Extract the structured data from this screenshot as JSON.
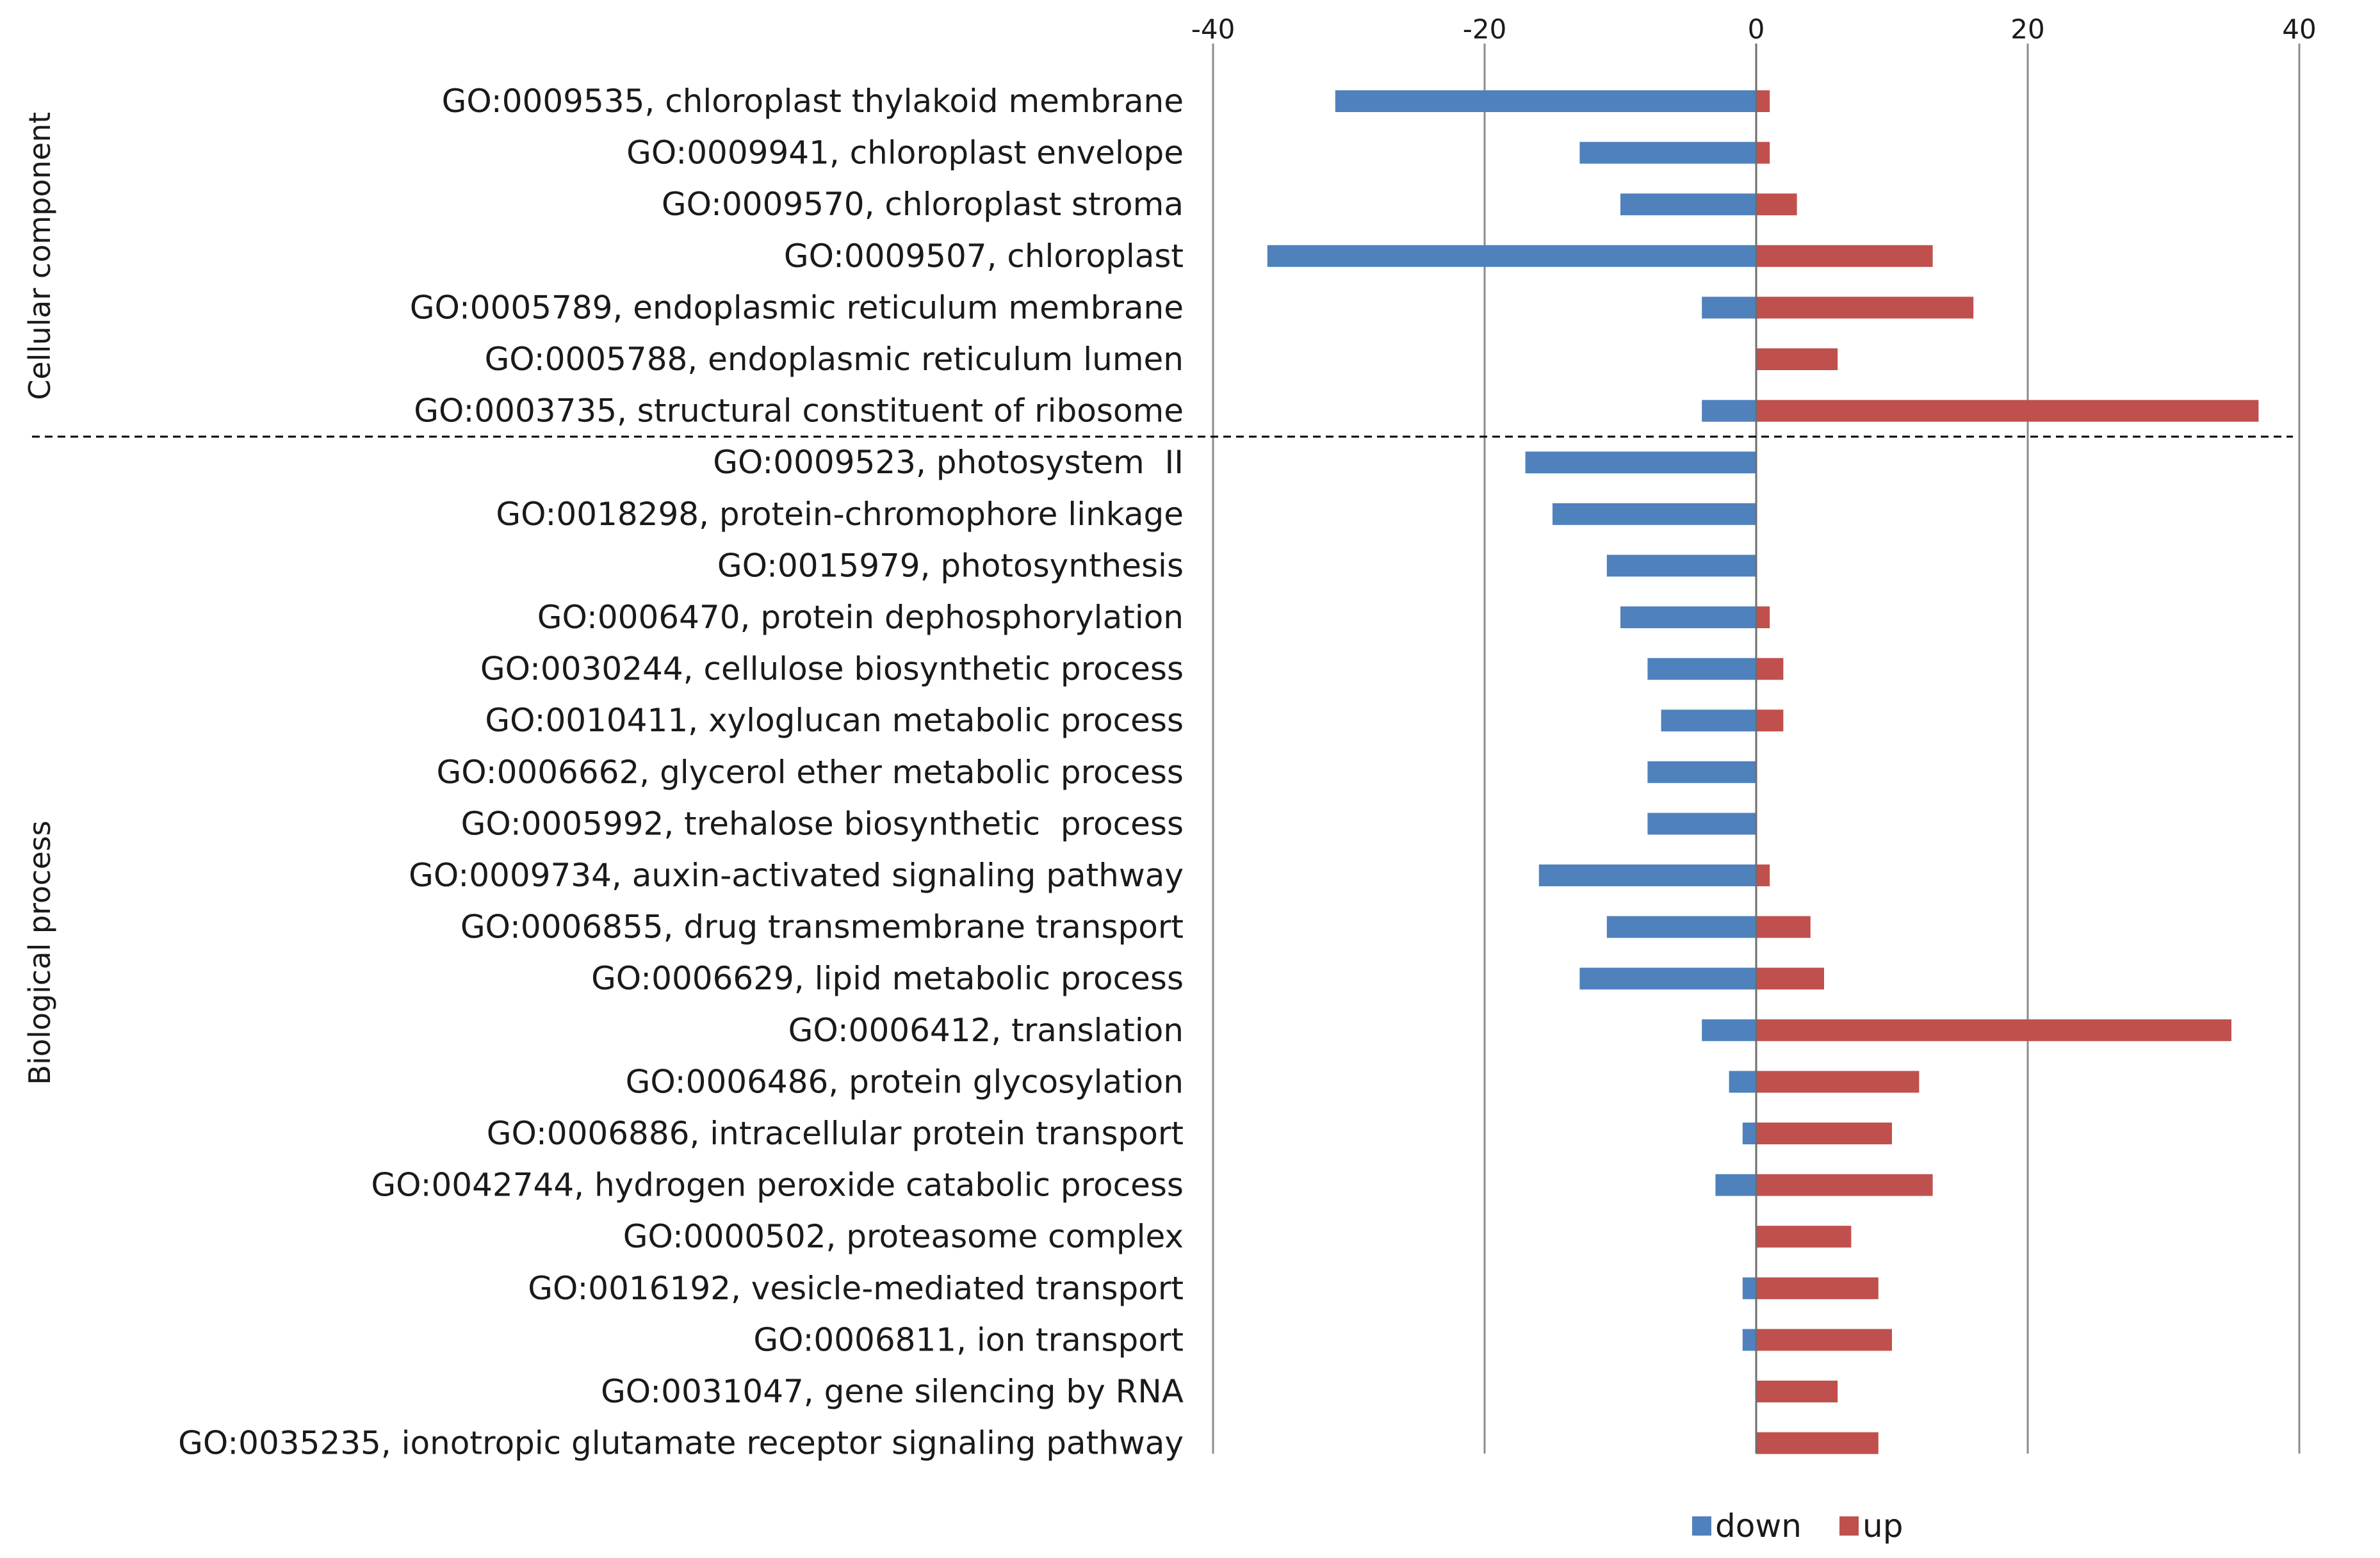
{
  "chart_data": {
    "type": "bar",
    "orientation": "horizontal",
    "categories": [
      "GO:0009535, chloroplast thylakoid membrane",
      "GO:0009941, chloroplast envelope",
      "GO:0009570, chloroplast stroma",
      "GO:0009507, chloroplast",
      "GO:0005789, endoplasmic reticulum membrane",
      "GO:0005788, endoplasmic reticulum lumen",
      "GO:0003735, structural constituent of ribosome",
      "GO:0009523, photosystem  II",
      "GO:0018298, protein-chromophore linkage",
      "GO:0015979, photosynthesis",
      "GO:0006470, protein dephosphorylation",
      "GO:0030244, cellulose biosynthetic process",
      "GO:0010411, xyloglucan metabolic process",
      "GO:0006662, glycerol ether metabolic process",
      "GO:0005992, trehalose biosynthetic  process",
      "GO:0009734, auxin-activated signaling pathway",
      "GO:0006855, drug transmembrane transport",
      "GO:0006629, lipid metabolic process",
      "GO:0006412, translation",
      "GO:0006486, protein glycosylation",
      "GO:0006886, intracellular protein transport",
      "GO:0042744, hydrogen peroxide catabolic process",
      "GO:0000502, proteasome complex",
      "GO:0016192, vesicle-mediated transport",
      "GO:0006811, ion transport",
      "GO:0031047, gene silencing by RNA",
      "GO:0035235, ionotropic glutamate receptor signaling pathway"
    ],
    "series": [
      {
        "name": "down",
        "color": "#4F81BD",
        "values": [
          -31,
          -13,
          -10,
          -36,
          -4,
          0,
          -4,
          -17,
          -15,
          -11,
          -10,
          -8,
          -7,
          -8,
          -8,
          -16,
          -11,
          -13,
          -4,
          -2,
          -1,
          -3,
          0,
          -1,
          -1,
          0,
          0
        ]
      },
      {
        "name": "up",
        "color": "#C0504D",
        "values": [
          1,
          1,
          3,
          13,
          16,
          6,
          37,
          0,
          0,
          0,
          1,
          2,
          2,
          0,
          0,
          1,
          4,
          5,
          35,
          12,
          10,
          13,
          7,
          9,
          10,
          6,
          9
        ]
      }
    ],
    "xlim": [
      -40,
      40
    ],
    "xticks": [
      "-40",
      "-20",
      "0",
      "20",
      "40"
    ],
    "grid": true,
    "legend_position": "bottom",
    "groups": [
      {
        "label": "Cellular component",
        "first": 0,
        "last": 6
      },
      {
        "label": "Biological process",
        "first": 7,
        "last": 26
      }
    ]
  }
}
